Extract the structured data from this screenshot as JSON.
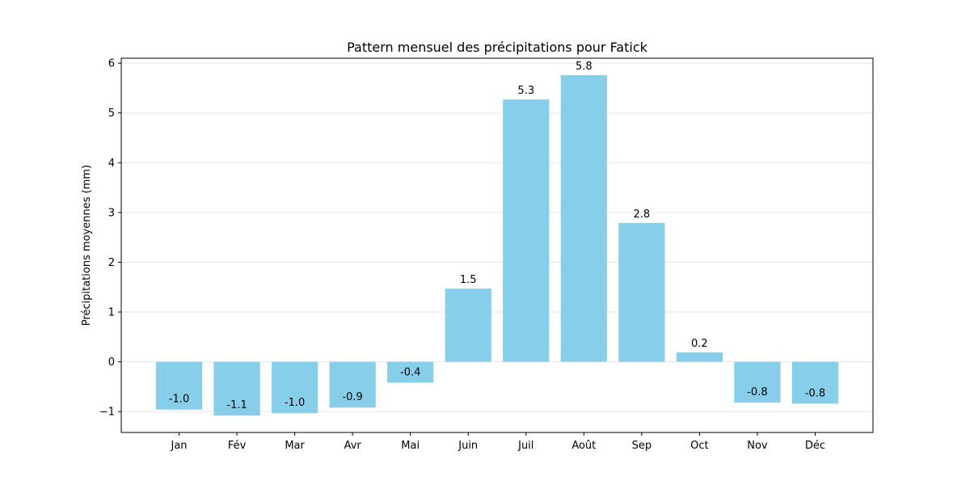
{
  "chart_data": {
    "type": "bar",
    "title": "Pattern mensuel des précipitations pour Fatick",
    "xlabel": "",
    "ylabel": "Précipitations moyennes (mm)",
    "categories": [
      "Jan",
      "Fév",
      "Mar",
      "Avr",
      "Mai",
      "Juin",
      "Juil",
      "Août",
      "Sep",
      "Oct",
      "Nov",
      "Déc"
    ],
    "values": [
      -0.96,
      -1.08,
      -1.03,
      -0.92,
      -0.42,
      1.47,
      5.27,
      5.76,
      2.79,
      0.19,
      -0.82,
      -0.84
    ],
    "value_labels": [
      "-1.0",
      "-1.1",
      "-1.0",
      "-0.9",
      "-0.4",
      "1.5",
      "5.3",
      "5.8",
      "2.8",
      "0.2",
      "-0.8",
      "-0.8"
    ],
    "ylim": [
      -1.42,
      6.1
    ],
    "yticks": [
      -1,
      0,
      1,
      2,
      3,
      4,
      5,
      6
    ],
    "ytick_labels": [
      "−1",
      "0",
      "1",
      "2",
      "3",
      "4",
      "5",
      "6"
    ],
    "grid": "y",
    "bar_color": "#87CEEB"
  }
}
